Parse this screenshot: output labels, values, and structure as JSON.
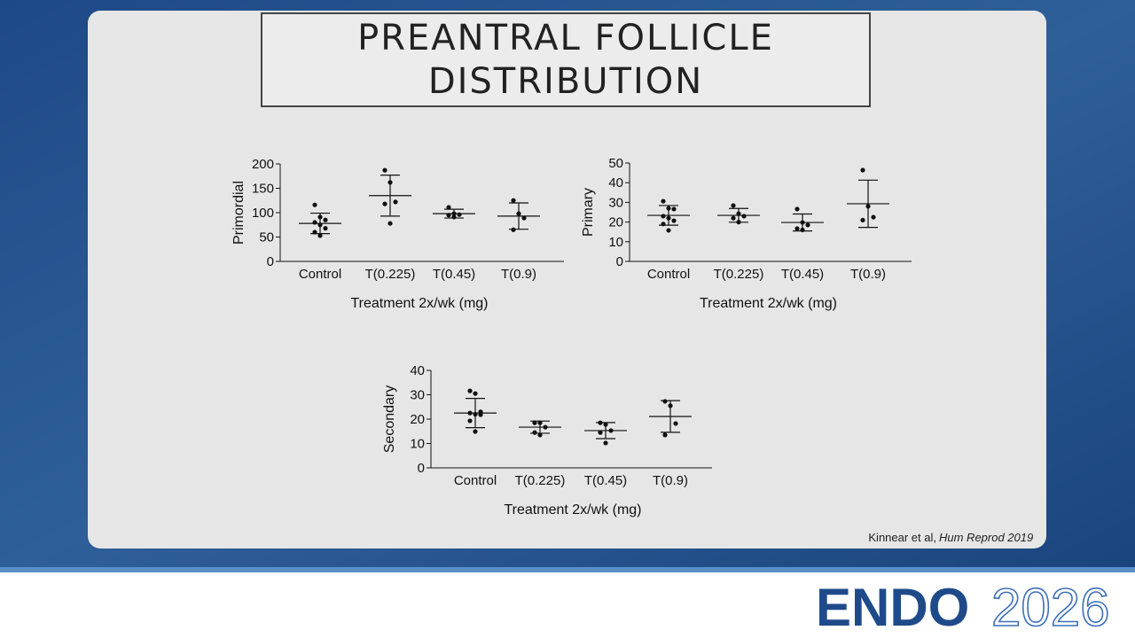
{
  "slide": {
    "title_line1": "PREANTRAL FOLLICLE",
    "title_line2": "DISTRIBUTION",
    "citation_authors": "Kinnear et al,",
    "citation_journal": "Hum Reprod 2019",
    "logo_brand": "ENDO",
    "logo_year": "2026"
  },
  "chart_data": [
    {
      "type": "scatter",
      "ylabel": "Primordial",
      "xlabel": "Treatment 2x/wk (mg)",
      "color": "#111111",
      "categories": [
        "Control",
        "T(0.225)",
        "T(0.45)",
        "T(0.9)"
      ],
      "values": [
        [
          116,
          91,
          85,
          80,
          75,
          68,
          60,
          53
        ],
        [
          187,
          162,
          122,
          118,
          78
        ],
        [
          111,
          98,
          96,
          95,
          91
        ],
        [
          125,
          98,
          89,
          65
        ]
      ],
      "means": [
        78,
        135,
        98,
        93
      ],
      "errors": [
        21,
        42,
        9,
        27
      ],
      "ylim": [
        0,
        200
      ],
      "yticks": [
        0,
        50,
        100,
        150,
        200
      ]
    },
    {
      "type": "scatter",
      "ylabel": "Primary",
      "xlabel": "Treatment 2x/wk (mg)",
      "color": "#111111",
      "categories": [
        "Control",
        "T(0.225)",
        "T(0.45)",
        "T(0.9)"
      ],
      "values": [
        [
          30.6,
          27,
          26.6,
          23,
          22,
          20.7,
          19,
          15.8
        ],
        [
          28.4,
          24.3,
          23,
          22,
          20
        ],
        [
          26.6,
          19.8,
          18.5,
          16.7,
          16
        ],
        [
          46.4,
          28,
          22.5,
          21
        ]
      ],
      "means": [
        23.4,
        23.4,
        19.8,
        29.3
      ],
      "errors": [
        5,
        3.5,
        4.3,
        12
      ],
      "ylim": [
        0,
        50
      ],
      "yticks": [
        0,
        10,
        20,
        30,
        40,
        50
      ]
    },
    {
      "type": "scatter",
      "ylabel": "Secondary",
      "xlabel": "Treatment 2x/wk (mg)",
      "color": "#111111",
      "categories": [
        "Control",
        "T(0.225)",
        "T(0.45)",
        "T(0.9)"
      ],
      "values": [
        [
          31.6,
          30.5,
          23,
          22.5,
          22,
          21.8,
          19.3,
          14.9
        ],
        [
          18.5,
          18.5,
          16.7,
          14.5,
          13.5
        ],
        [
          18.5,
          17.8,
          15.3,
          14.5,
          10.2
        ],
        [
          27.3,
          25.5,
          18.2,
          13.5
        ]
      ],
      "means": [
        22.5,
        16.7,
        15.3,
        21.1
      ],
      "errors": [
        6,
        2.5,
        3.3,
        6.5
      ],
      "ylim": [
        0,
        40
      ],
      "yticks": [
        0,
        10,
        20,
        30,
        40
      ]
    }
  ]
}
